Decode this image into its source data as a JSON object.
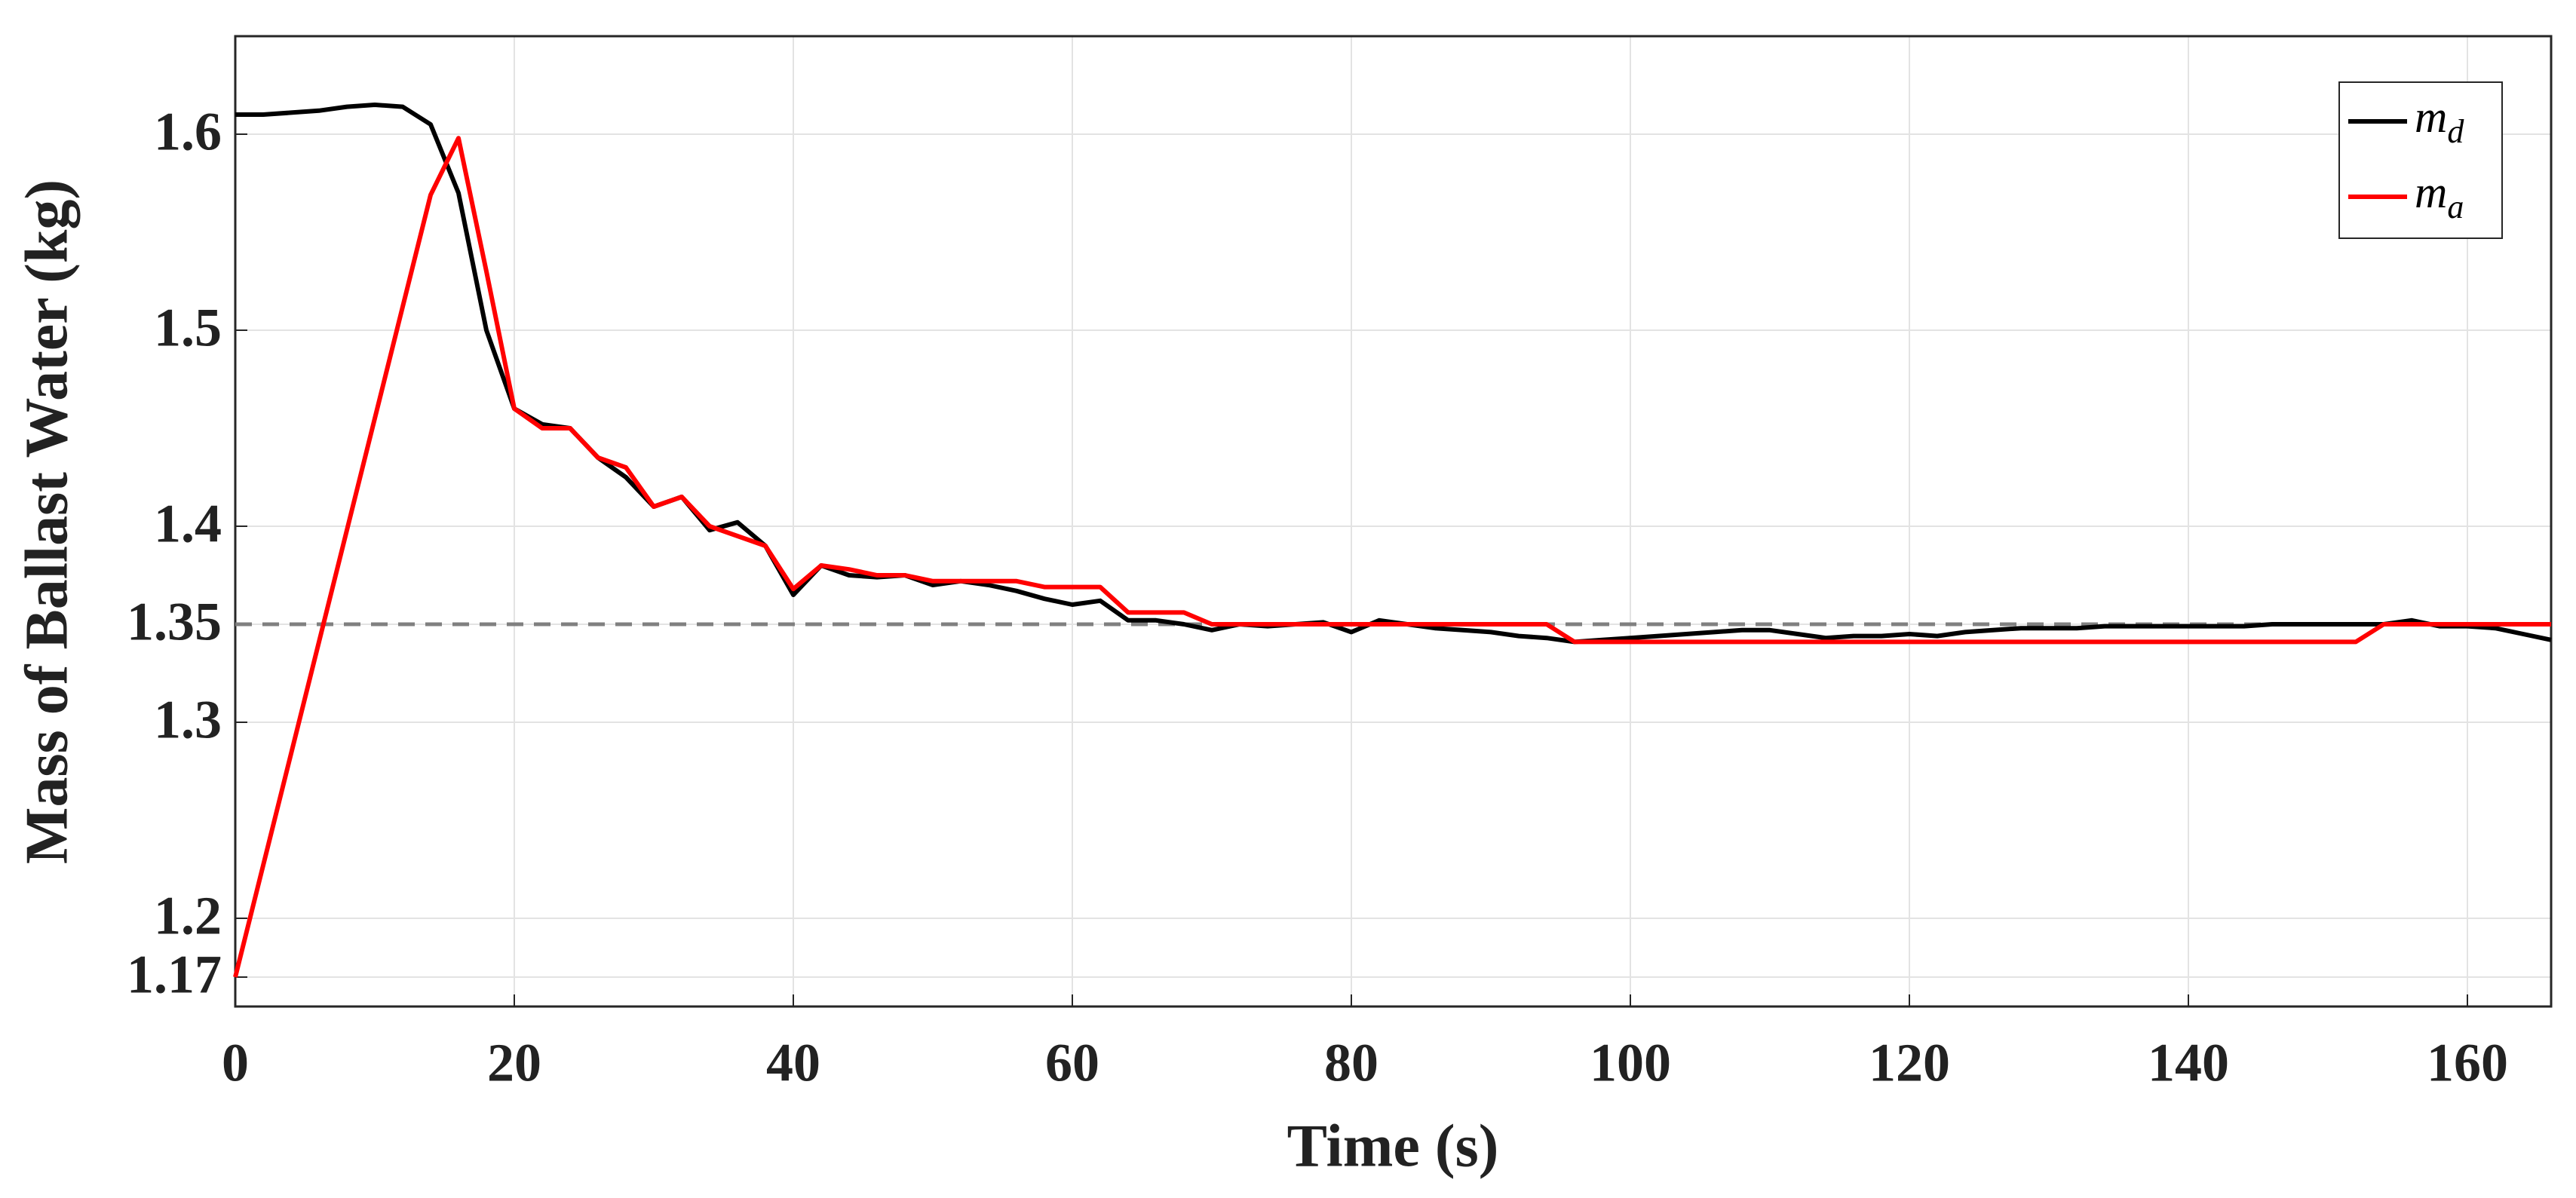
{
  "chart_data": {
    "type": "line",
    "xlabel": "Time (s)",
    "ylabel": "Mass of Ballast Water (kg)",
    "xlim": [
      0,
      166
    ],
    "ylim": [
      1.155,
      1.65
    ],
    "xticks": [
      0,
      20,
      40,
      60,
      80,
      100,
      120,
      140,
      160
    ],
    "yticks": [
      1.17,
      1.2,
      1.3,
      1.35,
      1.4,
      1.5,
      1.6
    ],
    "grid": true,
    "legend": "top-right",
    "reference_line": {
      "value": 1.35,
      "color": "#808080",
      "style": "dashed"
    },
    "x": [
      0,
      2,
      4,
      6,
      8,
      10,
      12,
      14,
      16,
      18,
      20,
      22,
      24,
      26,
      28,
      30,
      32,
      34,
      36,
      38,
      40,
      42,
      44,
      46,
      48,
      50,
      52,
      54,
      56,
      58,
      60,
      62,
      64,
      66,
      68,
      70,
      72,
      74,
      76,
      78,
      80,
      82,
      84,
      86,
      88,
      90,
      92,
      94,
      96,
      98,
      100,
      102,
      104,
      106,
      108,
      110,
      112,
      114,
      116,
      118,
      120,
      122,
      124,
      126,
      128,
      130,
      132,
      134,
      136,
      138,
      140,
      142,
      144,
      146,
      148,
      150,
      152,
      154,
      156,
      158,
      160,
      162,
      164,
      166
    ],
    "series": [
      {
        "name": "m",
        "name_subscript": "d",
        "color": "#000000",
        "values": [
          1.61,
          1.61,
          1.611,
          1.612,
          1.614,
          1.615,
          1.614,
          1.605,
          1.57,
          1.5,
          1.46,
          1.452,
          1.45,
          1.435,
          1.425,
          1.41,
          1.415,
          1.398,
          1.402,
          1.39,
          1.365,
          1.38,
          1.375,
          1.374,
          1.375,
          1.37,
          1.372,
          1.37,
          1.367,
          1.363,
          1.36,
          1.362,
          1.352,
          1.352,
          1.35,
          1.347,
          1.35,
          1.349,
          1.35,
          1.351,
          1.346,
          1.352,
          1.35,
          1.348,
          1.347,
          1.346,
          1.344,
          1.343,
          1.341,
          1.342,
          1.343,
          1.344,
          1.345,
          1.346,
          1.347,
          1.347,
          1.345,
          1.343,
          1.344,
          1.344,
          1.345,
          1.344,
          1.346,
          1.347,
          1.348,
          1.348,
          1.348,
          1.349,
          1.349,
          1.349,
          1.349,
          1.349,
          1.349,
          1.35,
          1.35,
          1.35,
          1.35,
          1.35,
          1.352,
          1.349,
          1.349,
          1.348,
          1.345,
          1.342
        ]
      },
      {
        "name": "m",
        "name_subscript": "a",
        "color": "#ff0000",
        "values": [
          1.17,
          1.227,
          1.284,
          1.341,
          1.398,
          1.455,
          1.512,
          1.569,
          1.598,
          1.53,
          1.46,
          1.45,
          1.45,
          1.435,
          1.43,
          1.41,
          1.415,
          1.4,
          1.395,
          1.39,
          1.368,
          1.38,
          1.378,
          1.375,
          1.375,
          1.372,
          1.372,
          1.372,
          1.372,
          1.369,
          1.369,
          1.369,
          1.356,
          1.356,
          1.356,
          1.35,
          1.35,
          1.35,
          1.35,
          1.35,
          1.35,
          1.35,
          1.35,
          1.35,
          1.35,
          1.35,
          1.35,
          1.35,
          1.341,
          1.341,
          1.341,
          1.341,
          1.341,
          1.341,
          1.341,
          1.341,
          1.341,
          1.341,
          1.341,
          1.341,
          1.341,
          1.341,
          1.341,
          1.341,
          1.341,
          1.341,
          1.341,
          1.341,
          1.341,
          1.341,
          1.341,
          1.341,
          1.341,
          1.341,
          1.341,
          1.341,
          1.341,
          1.35,
          1.35,
          1.35,
          1.35,
          1.35,
          1.35,
          1.35
        ]
      }
    ]
  }
}
